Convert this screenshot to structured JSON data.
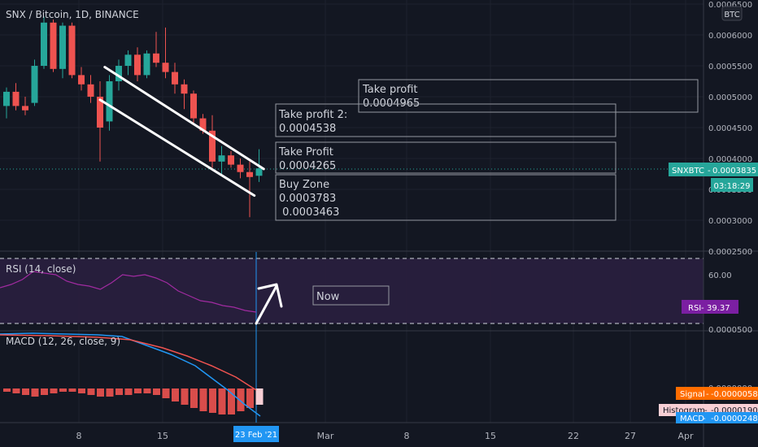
{
  "header": {
    "symbol_title": "SNX / Bitcoin, 1D, BINANCE",
    "currency_badge": "BTC"
  },
  "price_axis": {
    "labels": [
      "0.0006500",
      "0.0006000",
      "0.0005500",
      "0.0005000",
      "0.0004500",
      "0.0004000",
      "0.0003500",
      "0.0003000",
      "0.0002500"
    ],
    "last_price_symbol": "SNXBTC",
    "last_price": "0.0003835",
    "countdown": "03:18:29"
  },
  "time_axis": {
    "labels": [
      "8",
      "15",
      "Mar",
      "8",
      "15",
      "22",
      "27",
      "Apr"
    ],
    "cursor_label": "23 Feb '21"
  },
  "annotations": [
    {
      "id": "take-profit-3",
      "lines": [
        "Take profit",
        "0.0004965"
      ]
    },
    {
      "id": "take-profit-2",
      "lines": [
        "Take profit 2:",
        "0.0004538"
      ]
    },
    {
      "id": "take-profit-1",
      "lines": [
        "Take Profit",
        "0.0004265"
      ]
    },
    {
      "id": "buy-zone",
      "lines": [
        "Buy Zone",
        "0.0003783",
        " 0.0003463"
      ]
    },
    {
      "id": "now-label",
      "lines": [
        "Now"
      ]
    }
  ],
  "rsi": {
    "title": "RSI (14, close)",
    "level_label": "60.00",
    "value_label": "RSI",
    "value": "39.37",
    "values": [
      52,
      54,
      57,
      62,
      61,
      60,
      56,
      54,
      53,
      51,
      55,
      60,
      59,
      60,
      58,
      55,
      50,
      47,
      44,
      43,
      41,
      40,
      38,
      37
    ]
  },
  "macd": {
    "title": "MACD (12, 26, close, 9)",
    "signal_label": "Signal",
    "signal_value": "-0.0000058",
    "histogram_label": "Histogram",
    "histogram_value": "-0.0000190",
    "macd_label": "MACD",
    "macd_value": "-0.0000248",
    "axis_label": "0.0000000",
    "axis_label_top": "0.0000500"
  },
  "colors": {
    "background": "#131722",
    "up": "#26a69a",
    "down": "#ef5350",
    "rsi": "#a12ba1",
    "macd": "#2196f3",
    "signal": "#ff6d00",
    "text": "#d1d4dc",
    "muted": "#b2b5be"
  },
  "chart_data": {
    "type": "candlestick",
    "series": [
      {
        "name": "SNXBTC",
        "ohlc": [
          [
            0.000485,
            0.000515,
            0.000465,
            0.000508
          ],
          [
            0.000508,
            0.000522,
            0.000478,
            0.000485
          ],
          [
            0.000485,
            0.0005,
            0.00047,
            0.000478
          ],
          [
            0.00049,
            0.00056,
            0.000485,
            0.00055
          ],
          [
            0.00055,
            0.00063,
            0.000545,
            0.00062
          ],
          [
            0.00062,
            0.000625,
            0.00054,
            0.000545
          ],
          [
            0.000545,
            0.00062,
            0.00053,
            0.000615
          ],
          [
            0.000615,
            0.00062,
            0.00053,
            0.000535
          ],
          [
            0.000535,
            0.000548,
            0.00051,
            0.00052
          ],
          [
            0.00052,
            0.000535,
            0.00049,
            0.0005
          ],
          [
            0.0005,
            0.000525,
            0.000395,
            0.00045
          ],
          [
            0.00046,
            0.000535,
            0.000445,
            0.000525
          ],
          [
            0.000525,
            0.00056,
            0.00051,
            0.00055
          ],
          [
            0.00055,
            0.000575,
            0.000535,
            0.000568
          ],
          [
            0.000568,
            0.00058,
            0.000525,
            0.000535
          ],
          [
            0.000535,
            0.000575,
            0.00053,
            0.00057
          ],
          [
            0.00057,
            0.000605,
            0.000548,
            0.000555
          ],
          [
            0.000555,
            0.000612,
            0.00053,
            0.00054
          ],
          [
            0.00054,
            0.000555,
            0.000505,
            0.00052
          ],
          [
            0.00052,
            0.000528,
            0.00048,
            0.000505
          ],
          [
            0.000505,
            0.00051,
            0.000455,
            0.000465
          ],
          [
            0.000465,
            0.000472,
            0.00044,
            0.000445
          ],
          [
            0.000445,
            0.00047,
            0.000385,
            0.000395
          ],
          [
            0.000395,
            0.00042,
            0.000375,
            0.000405
          ],
          [
            0.000405,
            0.000412,
            0.000385,
            0.00039
          ],
          [
            0.00039,
            0.0004,
            0.000368,
            0.000378
          ],
          [
            0.000378,
            0.000395,
            0.000305,
            0.00037
          ],
          [
            0.000372,
            0.000415,
            0.000362,
            0.000384
          ]
        ]
      }
    ],
    "ylim": [
      0.00025,
      0.00065
    ],
    "grid": true,
    "trendlines": [
      {
        "from": [
          10.5,
          0.000548
        ],
        "to": [
          27.5,
          0.000383
        ]
      },
      {
        "from": [
          10.0,
          0.000495
        ],
        "to": [
          26.5,
          0.00034
        ]
      }
    ]
  }
}
